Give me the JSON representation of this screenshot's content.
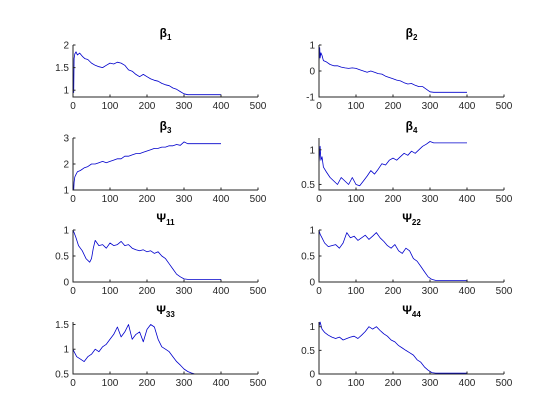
{
  "chart_data": [
    {
      "type": "line",
      "title": "β",
      "title_sub": "1",
      "xlim": [
        0,
        500
      ],
      "ylim": [
        0.85,
        2
      ],
      "xticks": [
        0,
        100,
        200,
        300,
        400,
        500
      ],
      "yticks": [
        1,
        1.5,
        2
      ],
      "ytick_labels": [
        "1",
        "1.5",
        "2"
      ],
      "series": [
        {
          "color": "#0000cc",
          "x": [
            0,
            2,
            3,
            5,
            8,
            12,
            18,
            25,
            32,
            40,
            50,
            60,
            70,
            80,
            90,
            100,
            110,
            120,
            130,
            140,
            150,
            160,
            170,
            180,
            190,
            200,
            210,
            220,
            230,
            240,
            250,
            260,
            270,
            280,
            290,
            300,
            310,
            320,
            330,
            340,
            350,
            360,
            370,
            380,
            390,
            400
          ],
          "y": [
            1.0,
            0.95,
            1.7,
            1.8,
            1.85,
            1.78,
            1.82,
            1.75,
            1.7,
            1.68,
            1.6,
            1.55,
            1.52,
            1.5,
            1.55,
            1.6,
            1.58,
            1.62,
            1.6,
            1.55,
            1.45,
            1.42,
            1.35,
            1.3,
            1.35,
            1.3,
            1.25,
            1.22,
            1.2,
            1.15,
            1.12,
            1.1,
            1.05,
            1.02,
            0.97,
            0.92,
            0.9,
            0.9,
            0.9,
            0.9,
            0.9,
            0.9,
            0.9,
            0.9,
            0.9,
            0.9
          ]
        }
      ]
    },
    {
      "type": "line",
      "title": "β",
      "title_sub": "2",
      "xlim": [
        0,
        500
      ],
      "ylim": [
        -1,
        1
      ],
      "xticks": [
        0,
        100,
        200,
        300,
        400,
        500
      ],
      "yticks": [
        -1,
        0,
        1
      ],
      "ytick_labels": [
        "-1",
        "0",
        "1"
      ],
      "series": [
        {
          "color": "#0000cc",
          "x": [
            0,
            2,
            3,
            5,
            8,
            12,
            20,
            30,
            40,
            50,
            60,
            70,
            80,
            90,
            100,
            110,
            120,
            130,
            140,
            150,
            160,
            170,
            180,
            190,
            200,
            210,
            220,
            230,
            240,
            250,
            260,
            270,
            280,
            290,
            300,
            310,
            320,
            330,
            340,
            350,
            360,
            370,
            380,
            390,
            400
          ],
          "y": [
            0.3,
            0.9,
            0.5,
            0.7,
            0.6,
            0.4,
            0.35,
            0.25,
            0.2,
            0.2,
            0.15,
            0.12,
            0.1,
            0.12,
            0.1,
            0.05,
            0.0,
            -0.05,
            0.0,
            -0.05,
            -0.1,
            -0.12,
            -0.2,
            -0.25,
            -0.3,
            -0.35,
            -0.38,
            -0.45,
            -0.5,
            -0.48,
            -0.55,
            -0.6,
            -0.6,
            -0.7,
            -0.8,
            -0.82,
            -0.82,
            -0.82,
            -0.82,
            -0.82,
            -0.82,
            -0.82,
            -0.82,
            -0.82,
            -0.82
          ]
        }
      ]
    },
    {
      "type": "line",
      "title": "β",
      "title_sub": "3",
      "xlim": [
        0,
        500
      ],
      "ylim": [
        1,
        3
      ],
      "xticks": [
        0,
        100,
        200,
        300,
        400,
        500
      ],
      "yticks": [
        1,
        2,
        3
      ],
      "ytick_labels": [
        "1",
        "2",
        "3"
      ],
      "series": [
        {
          "color": "#0000cc",
          "x": [
            0,
            2,
            3,
            5,
            8,
            12,
            20,
            30,
            40,
            50,
            60,
            70,
            80,
            90,
            100,
            110,
            120,
            130,
            140,
            150,
            160,
            170,
            180,
            190,
            200,
            210,
            220,
            230,
            240,
            250,
            260,
            270,
            280,
            290,
            300,
            310,
            320,
            330,
            340,
            350,
            360,
            370,
            380,
            390,
            400
          ],
          "y": [
            1.1,
            1.0,
            1.3,
            1.5,
            1.6,
            1.7,
            1.75,
            1.85,
            1.9,
            2.0,
            2.0,
            2.05,
            2.1,
            2.05,
            2.1,
            2.15,
            2.2,
            2.2,
            2.3,
            2.3,
            2.35,
            2.4,
            2.4,
            2.45,
            2.5,
            2.55,
            2.6,
            2.6,
            2.65,
            2.65,
            2.7,
            2.7,
            2.75,
            2.72,
            2.85,
            2.78,
            2.78,
            2.78,
            2.78,
            2.78,
            2.78,
            2.78,
            2.78,
            2.78,
            2.78
          ]
        }
      ]
    },
    {
      "type": "line",
      "title": "β",
      "title_sub": "4",
      "xlim": [
        0,
        500
      ],
      "ylim": [
        0.42,
        1.17
      ],
      "xticks": [
        0,
        100,
        200,
        300,
        400,
        500
      ],
      "yticks": [
        0.5,
        1
      ],
      "ytick_labels": [
        "0.5",
        "1"
      ],
      "series": [
        {
          "color": "#0000cc",
          "x": [
            0,
            2,
            3,
            5,
            8,
            12,
            20,
            30,
            40,
            50,
            60,
            70,
            80,
            90,
            100,
            110,
            120,
            130,
            140,
            150,
            160,
            170,
            180,
            190,
            200,
            210,
            220,
            230,
            240,
            250,
            260,
            270,
            280,
            290,
            300,
            310,
            320,
            330,
            340,
            350,
            360,
            370,
            380,
            390,
            400
          ],
          "y": [
            0.8,
            0.95,
            1.05,
            0.85,
            0.9,
            0.75,
            0.68,
            0.6,
            0.55,
            0.5,
            0.6,
            0.55,
            0.5,
            0.6,
            0.5,
            0.48,
            0.55,
            0.62,
            0.7,
            0.65,
            0.72,
            0.8,
            0.78,
            0.85,
            0.88,
            0.85,
            0.9,
            0.95,
            0.92,
            0.98,
            0.95,
            1.0,
            1.05,
            1.08,
            1.12,
            1.1,
            1.1,
            1.1,
            1.1,
            1.1,
            1.1,
            1.1,
            1.1,
            1.1,
            1.1
          ]
        }
      ]
    },
    {
      "type": "line",
      "title": "Ψ",
      "title_sub": "11",
      "xlim": [
        0,
        500
      ],
      "ylim": [
        0,
        1
      ],
      "xticks": [
        0,
        100,
        200,
        300,
        400,
        500
      ],
      "yticks": [
        0,
        0.5,
        1
      ],
      "ytick_labels": [
        "0",
        "0.5",
        "1"
      ],
      "series": [
        {
          "color": "#0000cc",
          "x": [
            0,
            3,
            8,
            15,
            25,
            35,
            45,
            50,
            55,
            60,
            70,
            80,
            90,
            100,
            110,
            120,
            130,
            140,
            150,
            160,
            170,
            180,
            190,
            200,
            210,
            220,
            230,
            240,
            250,
            260,
            270,
            280,
            290,
            300,
            310,
            320,
            330,
            340,
            350,
            360,
            370,
            380,
            390,
            400
          ],
          "y": [
            1.0,
            0.95,
            0.85,
            0.7,
            0.6,
            0.45,
            0.38,
            0.45,
            0.65,
            0.8,
            0.7,
            0.72,
            0.65,
            0.75,
            0.7,
            0.72,
            0.78,
            0.7,
            0.72,
            0.65,
            0.62,
            0.6,
            0.62,
            0.58,
            0.6,
            0.55,
            0.58,
            0.5,
            0.45,
            0.35,
            0.25,
            0.15,
            0.1,
            0.06,
            0.05,
            0.05,
            0.05,
            0.05,
            0.05,
            0.05,
            0.05,
            0.05,
            0.05,
            0.05
          ]
        }
      ]
    },
    {
      "type": "line",
      "title": "Ψ",
      "title_sub": "22",
      "xlim": [
        0,
        500
      ],
      "ylim": [
        0,
        1
      ],
      "xticks": [
        0,
        100,
        200,
        300,
        400,
        500
      ],
      "yticks": [
        0,
        0.5,
        1
      ],
      "ytick_labels": [
        "0",
        "0.5",
        "1"
      ],
      "series": [
        {
          "color": "#0000cc",
          "x": [
            0,
            3,
            8,
            15,
            25,
            35,
            45,
            55,
            65,
            75,
            85,
            95,
            105,
            115,
            125,
            135,
            145,
            155,
            165,
            175,
            185,
            195,
            205,
            215,
            225,
            235,
            245,
            255,
            265,
            275,
            285,
            295,
            305,
            315,
            330,
            345,
            360,
            375,
            390,
            400
          ],
          "y": [
            1.0,
            0.92,
            0.85,
            0.75,
            0.68,
            0.7,
            0.72,
            0.65,
            0.75,
            0.95,
            0.85,
            0.88,
            0.8,
            0.85,
            0.9,
            0.82,
            0.88,
            0.95,
            0.85,
            0.78,
            0.7,
            0.65,
            0.72,
            0.6,
            0.55,
            0.65,
            0.6,
            0.45,
            0.4,
            0.3,
            0.2,
            0.1,
            0.05,
            0.03,
            0.03,
            0.03,
            0.03,
            0.03,
            0.03,
            0.03
          ]
        }
      ]
    },
    {
      "type": "line",
      "title": "Ψ",
      "title_sub": "33",
      "xlim": [
        0,
        500
      ],
      "ylim": [
        0.5,
        1.55
      ],
      "xticks": [
        0,
        100,
        200,
        300,
        400,
        500
      ],
      "yticks": [
        0.5,
        1,
        1.5
      ],
      "ytick_labels": [
        "0.5",
        "1",
        "1.5"
      ],
      "series": [
        {
          "color": "#0000cc",
          "x": [
            0,
            3,
            10,
            20,
            30,
            40,
            50,
            60,
            70,
            80,
            90,
            100,
            110,
            120,
            130,
            140,
            150,
            160,
            170,
            180,
            190,
            200,
            210,
            220,
            230,
            240,
            250,
            260,
            270,
            280,
            290,
            300,
            310,
            320,
            330,
            340,
            350,
            360,
            370,
            380,
            390,
            400
          ],
          "y": [
            1.0,
            0.95,
            0.85,
            0.8,
            0.75,
            0.85,
            0.9,
            1.0,
            0.95,
            1.05,
            1.1,
            1.2,
            1.3,
            1.45,
            1.25,
            1.35,
            1.5,
            1.2,
            1.3,
            1.35,
            1.15,
            1.4,
            1.5,
            1.45,
            1.2,
            1.05,
            1.0,
            0.95,
            0.85,
            0.75,
            0.68,
            0.6,
            0.55,
            0.52,
            0.5,
            0.5,
            0.5,
            0.5,
            0.5,
            0.5,
            0.5,
            0.5
          ]
        }
      ]
    },
    {
      "type": "line",
      "title": "Ψ",
      "title_sub": "44",
      "xlim": [
        0,
        500
      ],
      "ylim": [
        0,
        1.1
      ],
      "xticks": [
        0,
        100,
        200,
        300,
        400,
        500
      ],
      "yticks": [
        0,
        0.5,
        1
      ],
      "ytick_labels": [
        "0",
        "0.5",
        "1"
      ],
      "series": [
        {
          "color": "#0000cc",
          "x": [
            0,
            3,
            8,
            15,
            25,
            35,
            45,
            55,
            65,
            75,
            85,
            95,
            105,
            115,
            125,
            135,
            145,
            155,
            165,
            175,
            185,
            195,
            205,
            215,
            225,
            235,
            245,
            255,
            265,
            275,
            285,
            295,
            305,
            315,
            330,
            345,
            360,
            375,
            390,
            400
          ],
          "y": [
            1.0,
            1.1,
            0.95,
            0.88,
            0.82,
            0.78,
            0.75,
            0.78,
            0.72,
            0.75,
            0.78,
            0.8,
            0.75,
            0.82,
            0.9,
            1.0,
            0.95,
            1.0,
            0.92,
            0.85,
            0.8,
            0.72,
            0.68,
            0.6,
            0.55,
            0.5,
            0.45,
            0.4,
            0.3,
            0.25,
            0.15,
            0.08,
            0.03,
            0.02,
            0.02,
            0.02,
            0.02,
            0.02,
            0.02,
            0.02
          ]
        }
      ]
    }
  ]
}
